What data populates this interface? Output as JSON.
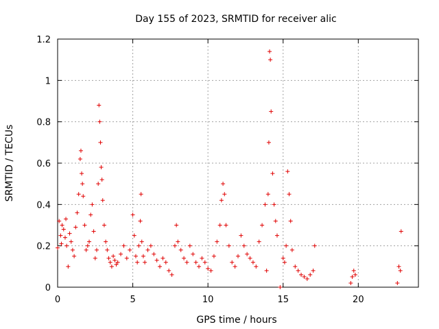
{
  "chart_data": {
    "type": "scatter",
    "title": "Day 155 of 2023, SRMTID for receiver alic",
    "xlabel": "GPS time / hours",
    "ylabel": "SRMTID / TECUs",
    "xlim": [
      0,
      24
    ],
    "ylim": [
      0,
      1.2
    ],
    "xticks": [
      0,
      5,
      10,
      15,
      20
    ],
    "xtick_labels": [
      "0",
      "5",
      "10",
      "15",
      "20"
    ],
    "yticks": [
      0,
      0.2,
      0.4,
      0.6,
      0.8,
      1.0,
      1.2
    ],
    "ytick_labels": [
      "0",
      "0.2",
      "0.4",
      "0.6",
      "0.8",
      "1",
      "1.2"
    ],
    "grid": true,
    "marker": "+",
    "color": "#e00000",
    "series": [
      {
        "name": "SRMTID",
        "x": [
          0.0,
          0.1,
          0.2,
          0.25,
          0.3,
          0.4,
          0.5,
          0.55,
          0.6,
          0.7,
          0.8,
          0.9,
          1.0,
          1.1,
          1.2,
          1.3,
          1.4,
          1.5,
          1.55,
          1.6,
          1.65,
          1.7,
          1.8,
          1.9,
          2.0,
          2.1,
          2.2,
          2.3,
          2.4,
          2.5,
          2.6,
          2.7,
          2.75,
          2.8,
          2.85,
          2.9,
          2.95,
          3.0,
          3.1,
          3.2,
          3.3,
          3.4,
          3.5,
          3.6,
          3.7,
          3.8,
          3.9,
          4.0,
          4.2,
          4.4,
          4.6,
          4.8,
          5.0,
          5.1,
          5.2,
          5.3,
          5.4,
          5.5,
          5.55,
          5.6,
          5.7,
          5.8,
          6.0,
          6.2,
          6.4,
          6.6,
          6.8,
          7.0,
          7.2,
          7.4,
          7.6,
          7.8,
          7.9,
          8.0,
          8.2,
          8.4,
          8.6,
          8.8,
          9.0,
          9.2,
          9.4,
          9.6,
          9.8,
          10.0,
          10.2,
          10.4,
          10.6,
          10.8,
          10.9,
          11.0,
          11.1,
          11.2,
          11.4,
          11.6,
          11.8,
          12.0,
          12.2,
          12.4,
          12.6,
          12.8,
          13.0,
          13.2,
          13.4,
          13.6,
          13.8,
          13.9,
          14.0,
          14.05,
          14.1,
          14.15,
          14.2,
          14.3,
          14.4,
          14.5,
          14.6,
          14.8,
          15.0,
          15.1,
          15.2,
          15.3,
          15.4,
          15.5,
          15.6,
          15.8,
          16.0,
          16.2,
          16.4,
          16.6,
          16.8,
          17.0,
          17.1,
          19.5,
          19.6,
          19.7,
          19.8,
          22.6,
          22.7,
          22.8,
          22.85
        ],
        "y": [
          0.19,
          0.32,
          0.25,
          0.21,
          0.3,
          0.28,
          0.24,
          0.33,
          0.2,
          0.1,
          0.26,
          0.22,
          0.18,
          0.15,
          0.29,
          0.36,
          0.45,
          0.62,
          0.66,
          0.55,
          0.5,
          0.44,
          0.3,
          0.18,
          0.2,
          0.22,
          0.35,
          0.4,
          0.27,
          0.14,
          0.18,
          0.5,
          0.88,
          0.8,
          0.7,
          0.58,
          0.52,
          0.42,
          0.3,
          0.22,
          0.18,
          0.14,
          0.12,
          0.1,
          0.15,
          0.13,
          0.11,
          0.12,
          0.16,
          0.2,
          0.14,
          0.18,
          0.35,
          0.25,
          0.15,
          0.12,
          0.2,
          0.32,
          0.45,
          0.22,
          0.15,
          0.12,
          0.18,
          0.2,
          0.16,
          0.13,
          0.1,
          0.14,
          0.12,
          0.08,
          0.06,
          0.2,
          0.3,
          0.22,
          0.18,
          0.14,
          0.12,
          0.2,
          0.16,
          0.12,
          0.1,
          0.14,
          0.12,
          0.09,
          0.08,
          0.15,
          0.22,
          0.3,
          0.42,
          0.5,
          0.45,
          0.3,
          0.2,
          0.12,
          0.1,
          0.15,
          0.25,
          0.2,
          0.16,
          0.14,
          0.12,
          0.1,
          0.22,
          0.3,
          0.4,
          0.08,
          0.45,
          0.7,
          1.14,
          1.1,
          0.85,
          0.55,
          0.4,
          0.32,
          0.25,
          0.0,
          0.14,
          0.12,
          0.2,
          0.56,
          0.45,
          0.32,
          0.18,
          0.1,
          0.08,
          0.06,
          0.05,
          0.04,
          0.06,
          0.08,
          0.2,
          0.02,
          0.05,
          0.08,
          0.06,
          0.02,
          0.1,
          0.08,
          0.27
        ]
      }
    ]
  }
}
